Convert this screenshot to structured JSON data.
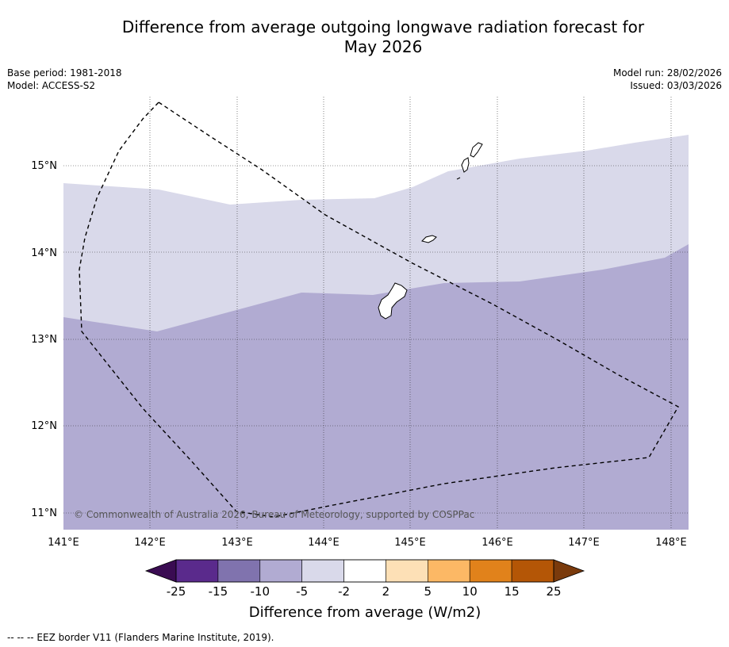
{
  "title": {
    "line1": "Difference from average outgoing longwave radiation forecast for",
    "line2": "May 2026"
  },
  "meta": {
    "base_period": "Base period: 1981-2018",
    "model": "Model: ACCESS-S2",
    "model_run": "Model run: 28/02/2026",
    "issued": "Issued: 03/03/2026"
  },
  "map": {
    "lon_range": [
      141,
      148.2
    ],
    "lat_range": [
      10.8,
      15.8
    ],
    "lon_ticks": [
      "141°E",
      "142°E",
      "143°E",
      "144°E",
      "145°E",
      "146°E",
      "147°E",
      "148°E"
    ],
    "lat_ticks": [
      "15°N",
      "14°N",
      "13°N",
      "12°N",
      "11°N"
    ],
    "copyright": "© Commonwealth of Australia 2026, Bureau of Meteorology, supported by COSPPac",
    "zones": [
      {
        "range": "-5 to -2",
        "color": "#d9d9ea"
      },
      {
        "range": "-10 to -5",
        "color": "#b1abd2"
      }
    ],
    "islands": [
      "Guam",
      "Rota",
      "Tinian",
      "Saipan"
    ]
  },
  "colorbar": {
    "title": "Difference from average (W/m2)",
    "labels": [
      "-25",
      "-15",
      "-10",
      "-5",
      "-2",
      "2",
      "5",
      "10",
      "15",
      "25"
    ],
    "colors": [
      "#5a2a8c",
      "#8073ae",
      "#b1abd2",
      "#d9d9ea",
      "#ffffff",
      "#fde0b6",
      "#fcb865",
      "#e1821b",
      "#b45606"
    ],
    "under_color": "#3a0c52",
    "over_color": "#7a3a0c"
  },
  "footnote": "-- -- -- EEZ border V11 (Flanders Marine Institute, 2019)."
}
